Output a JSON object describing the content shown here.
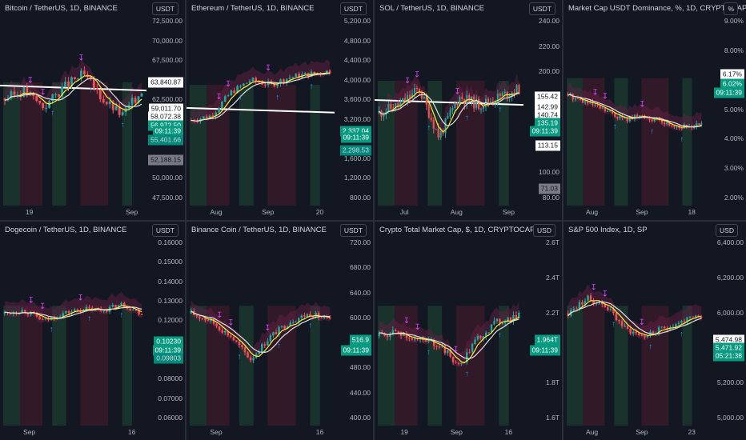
{
  "colors": {
    "bg": "#131722",
    "up": "#26a69a",
    "down": "#ef5350",
    "accent": "#2962ff",
    "sma": "#ffffff",
    "ema": "#ffeb3b",
    "signal": "#e040fb"
  },
  "panes": [
    {
      "title": "Bitcoin / TetherUS, 1D, BINANCE",
      "currency": "USDT",
      "y_ticks": [
        "72,500.00",
        "70,000.00",
        "67,500.00",
        "65,000.00",
        "62,500.00",
        "60,000.00",
        "57,500.00",
        "52,500.00",
        "50,000.00",
        "47,500.00"
      ],
      "tags": [
        {
          "text": "63,840.87",
          "style": "white"
        },
        {
          "text": "59,011.70",
          "style": "white"
        },
        {
          "text": "58,072.38",
          "style": "white"
        },
        {
          "text": "56,972.50",
          "style": "teal"
        },
        {
          "text": "09:11:39",
          "style": "teal"
        },
        {
          "text": "55,401.66",
          "style": "cyan"
        },
        {
          "text": "52,188.15",
          "style": "grey"
        }
      ],
      "x_ticks": [
        "19",
        "Sep"
      ]
    },
    {
      "title": "Ethereum / TetherUS, 1D, BINANCE",
      "currency": "USDT",
      "y_ticks": [
        "5,200.00",
        "4,800.00",
        "4,400.00",
        "4,000.00",
        "3,600.00",
        "3,200.00",
        "2,800.00",
        "1,600.00",
        "1,200.00",
        "800.00"
      ],
      "tags": [
        {
          "text": "2,337.04",
          "style": "teal"
        },
        {
          "text": "09:11:39",
          "style": "teal"
        },
        {
          "text": "2,298.53",
          "style": "cyan"
        }
      ],
      "x_ticks": [
        "Aug",
        "Sep",
        "20"
      ]
    },
    {
      "title": "SOL / TetherUS, 1D, BINANCE",
      "currency": "USDT",
      "y_ticks": [
        "240.00",
        "220.00",
        "200.00",
        "180.00",
        "160.00",
        "120.00",
        "100.00",
        "80.00"
      ],
      "tags": [
        {
          "text": "155.42",
          "style": "white"
        },
        {
          "text": "142.99",
          "style": "white"
        },
        {
          "text": "140.74",
          "style": "white"
        },
        {
          "text": "135.19",
          "style": "teal"
        },
        {
          "text": "09:11:39",
          "style": "teal"
        },
        {
          "text": "113.15",
          "style": "white"
        },
        {
          "text": "71.03",
          "style": "grey"
        }
      ],
      "x_ticks": [
        "Jul",
        "Aug",
        "Sep"
      ]
    },
    {
      "title": "Market Cap USDT Dominance, %, 1D, CRYPTOCAP",
      "currency": "%",
      "y_ticks": [
        "9.00%",
        "8.00%",
        "7.00%",
        "5.00%",
        "4.00%",
        "3.00%",
        "2.00%"
      ],
      "tags": [
        {
          "text": "6.17%",
          "style": "white"
        },
        {
          "text": "6.02%",
          "style": "teal"
        },
        {
          "text": "09:11:39",
          "style": "teal"
        }
      ],
      "x_ticks": [
        "Aug",
        "Sep",
        "18"
      ]
    },
    {
      "title": "Dogecoin / TetherUS, 1D, BINANCE",
      "currency": "USDT",
      "y_ticks": [
        "0.16000",
        "0.15000",
        "0.14000",
        "0.13000",
        "0.12000",
        "0.11000",
        "0.09000",
        "0.08000",
        "0.07000",
        "0.06000"
      ],
      "tags": [
        {
          "text": "0.10230",
          "style": "teal"
        },
        {
          "text": "09:11:39",
          "style": "teal"
        },
        {
          "text": "0.09803",
          "style": "cyan"
        }
      ],
      "x_ticks": [
        "Sep",
        "16"
      ]
    },
    {
      "title": "Binance Coin / TetherUS, 1D, BINANCE",
      "currency": "USDT",
      "y_ticks": [
        "720.00",
        "680.00",
        "640.00",
        "600.00",
        "560.00",
        "480.00",
        "440.00",
        "400.00"
      ],
      "tags": [
        {
          "text": "516.9",
          "style": "teal"
        },
        {
          "text": "09:11:39",
          "style": "teal"
        }
      ],
      "x_ticks": [
        "Sep",
        "16"
      ]
    },
    {
      "title": "Crypto Total Market Cap, $, 1D, CRYPTOCAP",
      "currency": "USD",
      "y_ticks": [
        "2.6T",
        "2.4T",
        "2.2T",
        "2T",
        "1.8T",
        "1.6T"
      ],
      "tags": [
        {
          "text": "1.964T",
          "style": "teal"
        },
        {
          "text": "09:11:39",
          "style": "teal"
        }
      ],
      "x_ticks": [
        "19",
        "Sep",
        "16"
      ]
    },
    {
      "title": "S&P 500 Index, 1D, SP",
      "currency": "USD",
      "y_ticks": [
        "6,400.00",
        "6,200.00",
        "6,000.00",
        "5,600.00",
        "5,200.00",
        "5,000.00"
      ],
      "tags": [
        {
          "text": "5,474.98",
          "style": "white"
        },
        {
          "text": "5,471.92",
          "style": "teal"
        },
        {
          "text": "05:21:38",
          "style": "teal"
        }
      ],
      "x_ticks": [
        "Aug",
        "Sep",
        "23"
      ]
    }
  ]
}
